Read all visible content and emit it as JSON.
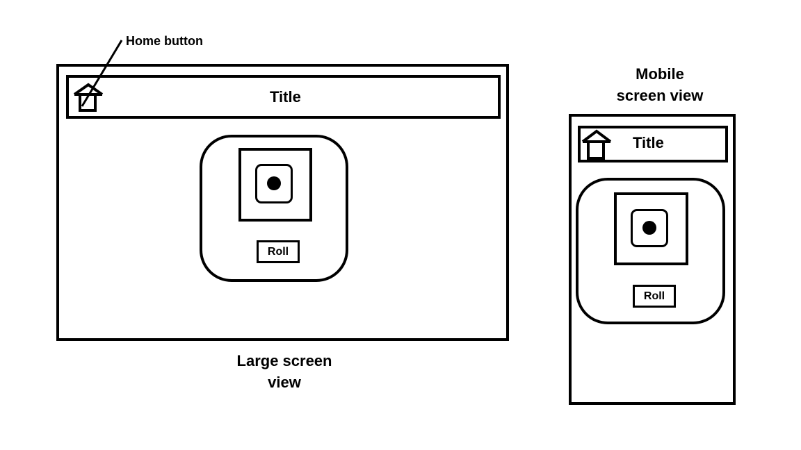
{
  "annotation": {
    "home_button_label": "Home button",
    "icon": "arrow-line"
  },
  "large_view": {
    "caption": "Large screen\nview",
    "title": "Title",
    "home_icon": "home-icon",
    "roll_label": "Roll",
    "die_icon": "die-face-one-icon"
  },
  "mobile_view": {
    "caption": "Mobile\nscreen view",
    "title": "Title",
    "home_icon": "home-icon",
    "roll_label": "Roll",
    "die_icon": "die-face-one-icon"
  },
  "colors": {
    "ink": "#000000",
    "background": "#ffffff"
  }
}
